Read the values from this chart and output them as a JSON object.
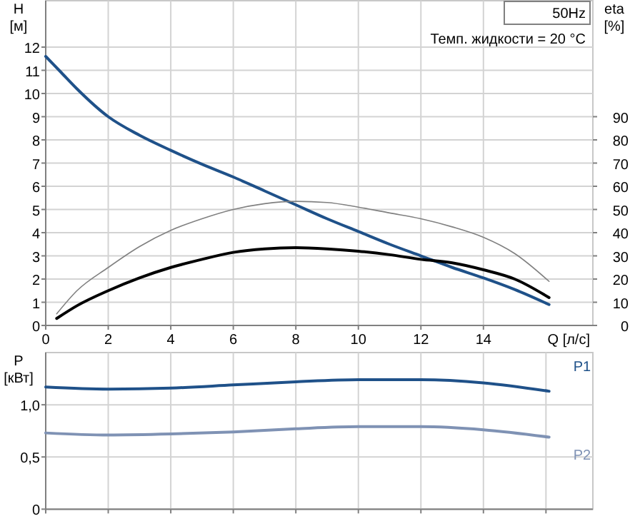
{
  "chart_data": [
    {
      "type": "line",
      "xlabel": "Q [л/с]",
      "ylabel": "H [м]",
      "y2label": "eta [%]",
      "annotations": [
        "50Hz",
        "Темп. жидкости = 20 °C"
      ],
      "xlim": [
        0,
        17.5
      ],
      "xticks": [
        0,
        2,
        4,
        6,
        8,
        10,
        12,
        14
      ],
      "ylim": [
        0,
        14
      ],
      "yticks": [
        0,
        1,
        2,
        3,
        4,
        5,
        6,
        7,
        8,
        9,
        10,
        11,
        12
      ],
      "y2lim": [
        0,
        140
      ],
      "y2ticks": [
        0,
        10,
        20,
        30,
        40,
        50,
        60,
        70,
        80,
        90
      ],
      "grid": true,
      "series": [
        {
          "color": "#1f5189",
          "x": [
            0,
            0.5,
            1,
            2,
            3,
            4,
            5,
            6,
            7,
            8,
            9,
            10,
            11,
            12,
            13,
            14,
            15,
            16.1
          ],
          "values": [
            11.6,
            10.9,
            10.2,
            9.0,
            8.2,
            7.55,
            6.95,
            6.4,
            5.8,
            5.2,
            4.6,
            4.05,
            3.5,
            3.0,
            2.5,
            2.05,
            1.55,
            0.9
          ]
        },
        {
          "color": "#808080",
          "axis": "y2",
          "x": [
            0.35,
            1,
            2,
            3,
            4,
            5,
            6,
            7,
            8,
            9,
            10,
            11,
            12,
            13,
            14,
            15,
            16.1
          ],
          "values": [
            5,
            15,
            25,
            34,
            41,
            46,
            50,
            52.5,
            53.5,
            53,
            51,
            48.5,
            46,
            42.5,
            38,
            31,
            19
          ]
        },
        {
          "color": "#000000",
          "axis": "y2",
          "x": [
            0.35,
            1,
            2,
            3,
            4,
            5,
            6,
            7,
            8,
            9,
            10,
            11,
            12,
            13,
            14,
            15,
            16.1
          ],
          "values": [
            3,
            8.5,
            15,
            20.5,
            25,
            28.5,
            31.5,
            33,
            33.5,
            33,
            32,
            30.5,
            28.5,
            27,
            24,
            20,
            12
          ]
        }
      ]
    },
    {
      "type": "line",
      "ylabel": "P [кВт]",
      "xlim": [
        0,
        17.5
      ],
      "xticks": [
        {
          "value": 0,
          "label": null
        },
        {
          "value": 2,
          "label": null
        },
        {
          "value": 4,
          "label": null
        },
        {
          "value": 6,
          "label": null
        },
        {
          "value": 8,
          "label": null
        },
        {
          "value": 10,
          "label": null
        },
        {
          "value": 12,
          "label": null
        },
        {
          "value": 14,
          "label": null
        },
        {
          "value": 16,
          "label": null
        }
      ],
      "ylim": [
        0,
        1.5
      ],
      "yticks": [
        0,
        {
          "value": 0.5,
          "label": "0,5"
        },
        {
          "value": 1,
          "label": "1,0"
        }
      ],
      "tick_labels": "y",
      "grid": true,
      "series": [
        {
          "name": "P1",
          "color": "#1f5189",
          "x": [
            0,
            2,
            4,
            6,
            8,
            10,
            12,
            14,
            16.1
          ],
          "values": [
            1.17,
            1.15,
            1.16,
            1.19,
            1.22,
            1.24,
            1.24,
            1.21,
            1.13
          ]
        },
        {
          "name": "P2",
          "color": "#7f92b4",
          "x": [
            0,
            2,
            4,
            6,
            8,
            10,
            12,
            14,
            16.1
          ],
          "values": [
            0.73,
            0.71,
            0.72,
            0.74,
            0.77,
            0.79,
            0.79,
            0.76,
            0.69
          ]
        }
      ]
    }
  ]
}
